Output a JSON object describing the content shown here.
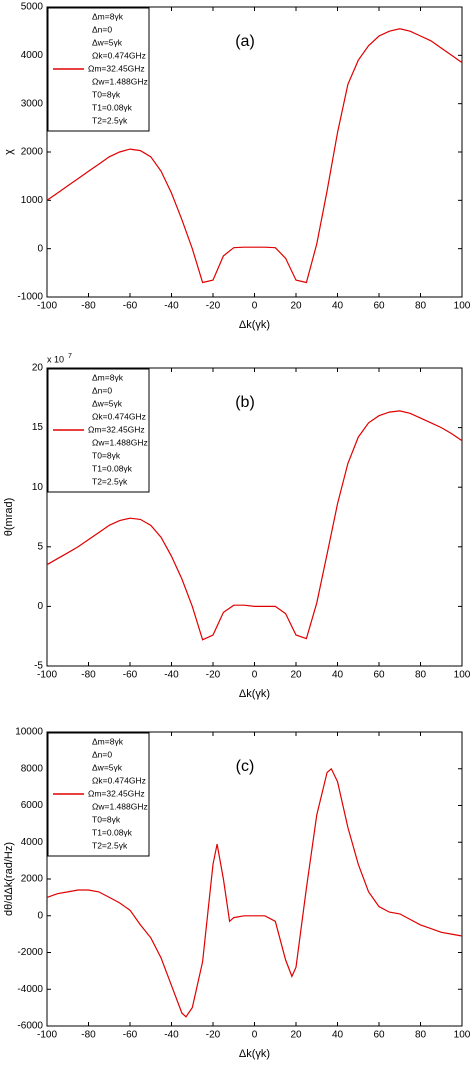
{
  "chart_data": [
    {
      "type": "line",
      "annotation": "(a)",
      "xlabel": "Δk(γk)",
      "ylabel": "χ",
      "legend_lines": [
        "Δm=8γk",
        "Δn=0",
        "Δw=5γk",
        "Ωk=0.474GHz",
        "Ωm=32.45GHz",
        "Ωw=1.488GHz",
        "T0=8γk",
        "T1=0.08γk",
        "T2=2.5γk"
      ],
      "xlim": [
        -100,
        100
      ],
      "xticks": [
        -100,
        -80,
        -60,
        -40,
        -20,
        0,
        20,
        40,
        60,
        80,
        100
      ],
      "ylim": [
        -1000,
        5000
      ],
      "yticks": [
        -1000,
        0,
        1000,
        2000,
        3000,
        4000,
        5000
      ],
      "x": [
        -100,
        -95,
        -90,
        -85,
        -80,
        -75,
        -70,
        -65,
        -60,
        -55,
        -50,
        -45,
        -40,
        -35,
        -30,
        -25,
        -20,
        -15,
        -10,
        -5,
        0,
        5,
        10,
        15,
        20,
        25,
        30,
        35,
        40,
        45,
        50,
        55,
        60,
        65,
        70,
        75,
        80,
        85,
        90,
        95,
        100
      ],
      "series": [
        {
          "color": "#e00000",
          "values": [
            1000,
            1150,
            1300,
            1450,
            1600,
            1750,
            1900,
            2000,
            2060,
            2030,
            1900,
            1600,
            1150,
            600,
            0,
            -700,
            -650,
            -150,
            20,
            30,
            30,
            30,
            20,
            -200,
            -650,
            -700,
            100,
            1200,
            2400,
            3400,
            3900,
            4200,
            4400,
            4500,
            4550,
            4500,
            4400,
            4300,
            4150,
            4000,
            3850
          ]
        }
      ]
    },
    {
      "type": "line",
      "annotation": "(b)",
      "xlabel": "Δk(γk)",
      "ylabel": "θ(mrad)",
      "scale_label": {
        "base": "x 10",
        "power": "7"
      },
      "legend_lines": [
        "Δm=8γk",
        "Δn=0",
        "Δw=5γk",
        "Ωk=0.474GHz",
        "Ωm=32.45GHz",
        "Ωw=1.488GHz",
        "T0=8γk",
        "T1=0.08γk",
        "T2=2.5γk"
      ],
      "xlim": [
        -100,
        100
      ],
      "xticks": [
        -100,
        -80,
        -60,
        -40,
        -20,
        0,
        20,
        40,
        60,
        80,
        100
      ],
      "ylim": [
        -5,
        20
      ],
      "yticks": [
        -5,
        0,
        5,
        10,
        15,
        20
      ],
      "x": [
        -100,
        -95,
        -90,
        -85,
        -80,
        -75,
        -70,
        -65,
        -60,
        -55,
        -50,
        -45,
        -40,
        -35,
        -30,
        -25,
        -20,
        -15,
        -10,
        -5,
        0,
        5,
        10,
        15,
        20,
        25,
        30,
        35,
        40,
        45,
        50,
        55,
        60,
        65,
        70,
        75,
        80,
        85,
        90,
        95,
        100
      ],
      "series": [
        {
          "color": "#e00000",
          "values": [
            3.5,
            4.0,
            4.5,
            5.0,
            5.6,
            6.2,
            6.8,
            7.2,
            7.4,
            7.3,
            6.8,
            5.8,
            4.2,
            2.3,
            0,
            -2.8,
            -2.4,
            -0.5,
            0.1,
            0.1,
            0,
            0,
            0,
            -0.6,
            -2.4,
            -2.7,
            0.3,
            4.4,
            8.6,
            12,
            14.2,
            15.4,
            16,
            16.3,
            16.4,
            16.2,
            15.8,
            15.4,
            15,
            14.5,
            13.9
          ]
        }
      ]
    },
    {
      "type": "line",
      "annotation": "(c)",
      "xlabel": "Δk(γk)",
      "ylabel": "dθ/dΔk(rad/Hz)",
      "legend_lines": [
        "Δm=8γk",
        "Δn=0",
        "Δw=5γk",
        "Ωk=0.474GHz",
        "Ωm=32.45GHz",
        "Ωw=1.488GHz",
        "T0=8γk",
        "T1=0.08γk",
        "T2=2.5γk"
      ],
      "xlim": [
        -100,
        100
      ],
      "xticks": [
        -100,
        -80,
        -60,
        -40,
        -20,
        0,
        20,
        40,
        60,
        80,
        100
      ],
      "ylim": [
        -6000,
        10000
      ],
      "yticks": [
        -6000,
        -4000,
        -2000,
        0,
        2000,
        4000,
        6000,
        8000,
        10000
      ],
      "x": [
        -100,
        -95,
        -90,
        -85,
        -80,
        -75,
        -70,
        -65,
        -60,
        -55,
        -50,
        -45,
        -40,
        -35,
        -33,
        -30,
        -25,
        -20,
        -18,
        -15,
        -12,
        -10,
        -5,
        0,
        5,
        10,
        15,
        18,
        20,
        25,
        30,
        35,
        37,
        40,
        45,
        50,
        55,
        60,
        65,
        70,
        75,
        80,
        85,
        90,
        95,
        100
      ],
      "series": [
        {
          "color": "#e00000",
          "values": [
            1000,
            1200,
            1300,
            1400,
            1400,
            1300,
            1000,
            700,
            300,
            -500,
            -1200,
            -2300,
            -3800,
            -5300,
            -5500,
            -5000,
            -2500,
            2800,
            3900,
            2000,
            -300,
            -100,
            0,
            0,
            0,
            -300,
            -2400,
            -3300,
            -2800,
            1500,
            5500,
            7800,
            8000,
            7300,
            4800,
            2800,
            1300,
            500,
            200,
            100,
            -200,
            -500,
            -700,
            -900,
            -1000,
            -1100
          ]
        }
      ]
    }
  ]
}
